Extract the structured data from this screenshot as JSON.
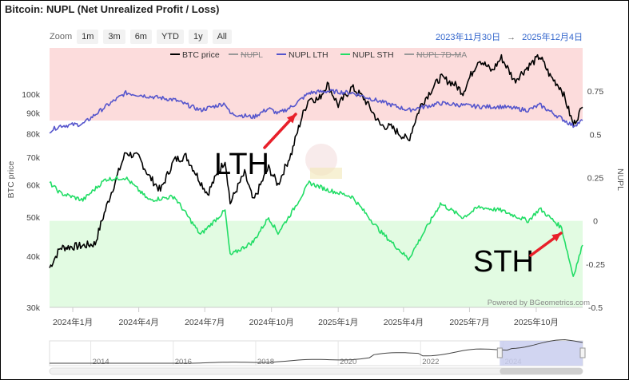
{
  "title": "Bitcoin: NUPL (Net Unrealized Profit / Loss)",
  "zoom": {
    "label": "Zoom",
    "buttons": [
      "1m",
      "3m",
      "6m",
      "YTD",
      "1y",
      "All"
    ]
  },
  "date_range": {
    "from": "2023年11月30日",
    "arrow": "→",
    "to": "2025年12月4日"
  },
  "credit": "Powered by BGeometrics.com",
  "annotations": {
    "lth": "LTH",
    "sth": "STH"
  },
  "colors": {
    "btc": "#000000",
    "lth": "#5555cc",
    "sth": "#22dd66",
    "profit_zone": "#fcdcdc",
    "loss_zone": "#e2fbe2",
    "nav_window": "#c9ceef",
    "arrow": "#e8202a"
  },
  "chart_data": {
    "type": "line",
    "title": "Bitcoin: NUPL (Net Unrealized Profit / Loss)",
    "xlabel": "",
    "ylabel_left": "BTC price",
    "ylabel_right": "NUPL",
    "y_left_scale": "log",
    "ylim_left": [
      30000,
      130000
    ],
    "ylim_right": [
      -0.5,
      1.0
    ],
    "x_range": [
      "2023-11-30",
      "2025-12-04"
    ],
    "x_ticks": [
      "2024年1月",
      "2024年4月",
      "2024年7月",
      "2024年10月",
      "2025年1月",
      "2025年4月",
      "2025年7月",
      "2025年10月"
    ],
    "y_left_ticks": [
      "30k",
      "40k",
      "50k",
      "60k",
      "70k",
      "80k",
      "90k",
      "100k"
    ],
    "y_right_ticks": [
      "0.75",
      "0.5",
      "0.25",
      "0",
      "-0.25",
      "-0.5"
    ],
    "zones": [
      {
        "from": 0.58,
        "to": 1.0,
        "color": "#fcdcdc"
      },
      {
        "from": -0.5,
        "to": 0.0,
        "color": "#e2fbe2"
      }
    ],
    "legend": [
      "BTC price",
      "NUPL",
      "NUPL LTH",
      "NUPL STH",
      "NUPL 7D-MA"
    ],
    "legend_hidden": [
      "NUPL",
      "NUPL 7D-MA"
    ],
    "legend_position": "top",
    "series": [
      {
        "name": "BTC price",
        "axis": "left",
        "x": [
          "2023-11-30",
          "2023-12-15",
          "2024-01-01",
          "2024-01-15",
          "2024-02-01",
          "2024-02-15",
          "2024-03-01",
          "2024-03-14",
          "2024-04-01",
          "2024-04-15",
          "2024-05-01",
          "2024-05-20",
          "2024-06-05",
          "2024-06-25",
          "2024-07-05",
          "2024-07-29",
          "2024-08-05",
          "2024-08-25",
          "2024-09-06",
          "2024-09-27",
          "2024-10-10",
          "2024-10-29",
          "2024-11-12",
          "2024-11-22",
          "2024-12-05",
          "2024-12-17",
          "2025-01-01",
          "2025-01-20",
          "2025-02-05",
          "2025-02-28",
          "2025-03-15",
          "2025-04-08",
          "2025-04-25",
          "2025-05-22",
          "2025-06-10",
          "2025-06-22",
          "2025-07-14",
          "2025-08-01",
          "2025-08-14",
          "2025-09-01",
          "2025-09-20",
          "2025-10-06",
          "2025-10-20",
          "2025-11-05",
          "2025-11-21",
          "2025-12-04"
        ],
        "values": [
          37500,
          42000,
          42300,
          42500,
          43000,
          52000,
          62000,
          72000,
          70000,
          63000,
          58000,
          69000,
          70500,
          61000,
          57000,
          69000,
          54000,
          64000,
          54500,
          66000,
          60000,
          72000,
          88000,
          98000,
          97000,
          106000,
          94000,
          104000,
          98000,
          84000,
          83000,
          77000,
          94000,
          110000,
          106000,
          101000,
          122000,
          114000,
          123000,
          108000,
          117000,
          124000,
          111000,
          103000,
          84000,
          93000
        ]
      },
      {
        "name": "NUPL LTH",
        "axis": "right",
        "x": [
          "2023-11-30",
          "2023-12-15",
          "2024-01-15",
          "2024-02-15",
          "2024-03-14",
          "2024-04-15",
          "2024-05-20",
          "2024-06-25",
          "2024-07-29",
          "2024-08-05",
          "2024-09-06",
          "2024-09-27",
          "2024-10-10",
          "2024-10-29",
          "2024-11-22",
          "2024-12-17",
          "2025-01-20",
          "2025-02-28",
          "2025-04-08",
          "2025-05-22",
          "2025-07-14",
          "2025-08-14",
          "2025-09-20",
          "2025-10-06",
          "2025-11-21",
          "2025-12-04"
        ],
        "values": [
          0.52,
          0.55,
          0.56,
          0.66,
          0.74,
          0.72,
          0.7,
          0.64,
          0.68,
          0.62,
          0.6,
          0.65,
          0.62,
          0.66,
          0.74,
          0.75,
          0.74,
          0.69,
          0.64,
          0.68,
          0.66,
          0.66,
          0.64,
          0.67,
          0.55,
          0.58
        ]
      },
      {
        "name": "NUPL STH",
        "axis": "right",
        "x": [
          "2023-11-30",
          "2023-12-15",
          "2024-01-15",
          "2024-02-15",
          "2024-03-14",
          "2024-04-15",
          "2024-05-20",
          "2024-06-25",
          "2024-07-29",
          "2024-08-05",
          "2024-09-06",
          "2024-09-27",
          "2024-10-10",
          "2024-10-29",
          "2024-11-22",
          "2024-12-17",
          "2025-01-20",
          "2025-02-28",
          "2025-04-08",
          "2025-05-22",
          "2025-06-22",
          "2025-07-14",
          "2025-08-14",
          "2025-09-20",
          "2025-10-06",
          "2025-11-05",
          "2025-11-21",
          "2025-12-04"
        ],
        "values": [
          0.22,
          0.16,
          0.12,
          0.24,
          0.25,
          0.12,
          0.14,
          -0.08,
          0.06,
          -0.2,
          -0.12,
          0.02,
          -0.07,
          0.05,
          0.22,
          0.18,
          0.14,
          -0.06,
          -0.22,
          0.1,
          0.02,
          0.08,
          0.06,
          0.0,
          0.07,
          -0.04,
          -0.32,
          -0.14
        ]
      }
    ],
    "navigator": {
      "years": [
        "2014",
        "2016",
        "2018",
        "2020",
        "2022",
        "2024"
      ],
      "window": [
        "2023-11-30",
        "2025-12-04"
      ]
    }
  }
}
